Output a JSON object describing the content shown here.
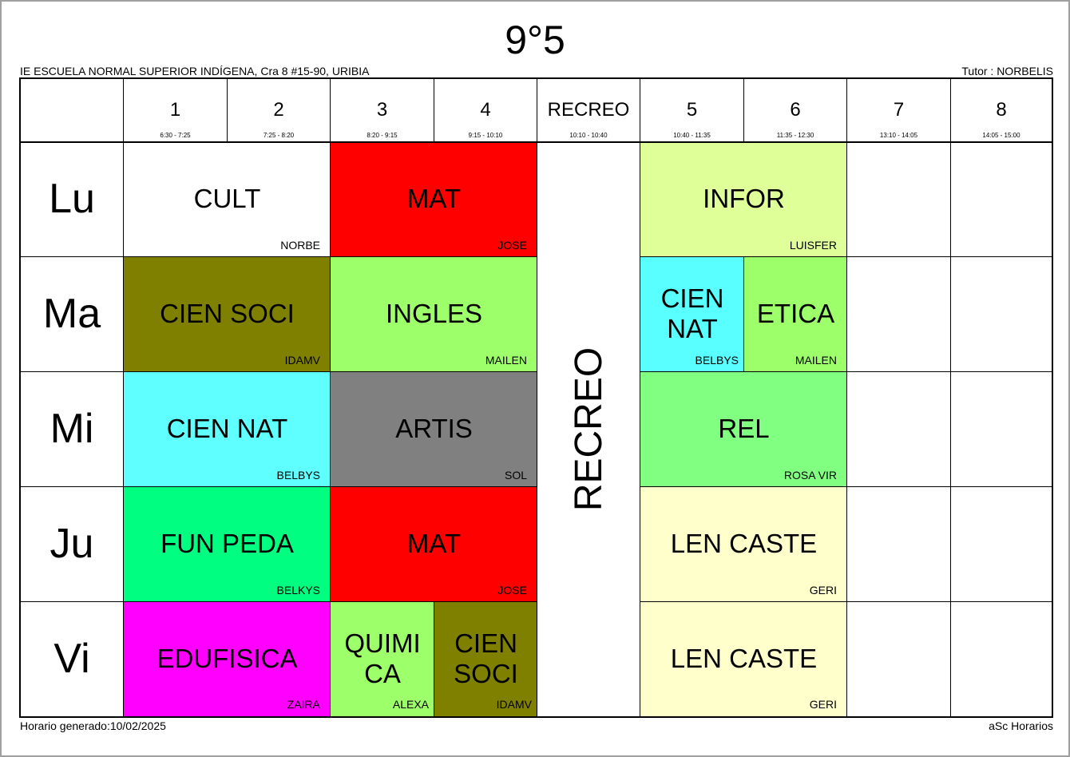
{
  "title": "9°5",
  "school": "IE ESCUELA NORMAL SUPERIOR INDÍGENA, Cra 8 #15-90, URIBIA",
  "tutor": "Tutor : NORBELIS",
  "periods": [
    {
      "num": "1",
      "time": "6:30 - 7:25"
    },
    {
      "num": "2",
      "time": "7:25 - 8:20"
    },
    {
      "num": "3",
      "time": "8:20 - 9:15"
    },
    {
      "num": "4",
      "time": "9:15 - 10:10"
    },
    {
      "num": "RECREO",
      "time": "10:10 - 10:40"
    },
    {
      "num": "5",
      "time": "10:40 - 11:35"
    },
    {
      "num": "6",
      "time": "11:35 - 12:30"
    },
    {
      "num": "7",
      "time": "13:10 - 14:05"
    },
    {
      "num": "8",
      "time": "14:05 - 15:00"
    }
  ],
  "days": [
    "Lu",
    "Ma",
    "Mi",
    "Ju",
    "Vi"
  ],
  "recreo_label": "RECREO",
  "lessons": [
    {
      "subject": "CULT",
      "teacher": "NORBE",
      "color": "#ffffff"
    },
    {
      "subject": "MAT",
      "teacher": "JOSE",
      "color": "#ff0000"
    },
    {
      "subject": "INFOR",
      "teacher": "LUISFER",
      "color": "#dfff99"
    },
    {
      "subject": "CIEN SOCI",
      "teacher": "IDAMV",
      "color": "#808000"
    },
    {
      "subject": "INGLES",
      "teacher": "MAILEN",
      "color": "#9dff6a"
    },
    {
      "subject": "CIEN NAT",
      "teacher": "BELBYS",
      "color": "#59ffff"
    },
    {
      "subject": "ETICA",
      "teacher": "MAILEN",
      "color": "#9dff6a"
    },
    {
      "subject": "CIEN NAT",
      "teacher": "BELBYS",
      "color": "#5fffff"
    },
    {
      "subject": "ARTIS",
      "teacher": "SOL",
      "color": "#808080"
    },
    {
      "subject": "REL",
      "teacher": "ROSA VIR",
      "color": "#80ff80"
    },
    {
      "subject": "FUN PEDA",
      "teacher": "BELKYS",
      "color": "#00ff80"
    },
    {
      "subject": "MAT",
      "teacher": "JOSE",
      "color": "#ff0000"
    },
    {
      "subject": "LEN CASTE",
      "teacher": "GERI",
      "color": "#ffffcc"
    },
    {
      "subject": "EDUFISICA",
      "teacher": "ZAIRA",
      "color": "#ff00ff"
    },
    {
      "subject": "QUIMICA",
      "teacher": "ALEXA",
      "color": "#9dff6a"
    },
    {
      "subject": "CIEN SOCI",
      "teacher": "IDAMV",
      "color": "#808000"
    },
    {
      "subject": "LEN CASTE",
      "teacher": "GERI",
      "color": "#ffffcc"
    }
  ],
  "lesson_lines": {
    "cien_nat_l1": "CIEN",
    "cien_nat_l2": "NAT",
    "quimica_l1": "QUIMI",
    "quimica_l2": "CA",
    "cien_soci_l1": "CIEN",
    "cien_soci_l2": "SOCI"
  },
  "footer_left": "Horario generado:10/02/2025",
  "footer_right": "aSc Horarios"
}
